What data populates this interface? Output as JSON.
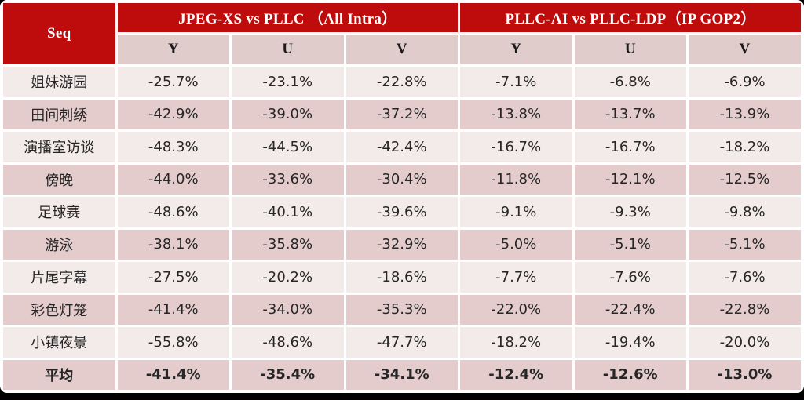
{
  "colors": {
    "header_red": "#BE0B0B",
    "header_text": "#FFFFFF",
    "subheader_bg": "#E1CCCC",
    "row_light_bg": "#F3EAEA",
    "row_dark_bg": "#E4CCCC",
    "body_text": "#262626",
    "grid_white": "#FFFFFF",
    "frame_black": "#000000"
  },
  "chart_data": {
    "type": "table",
    "seq_header": "Seq",
    "groups": [
      {
        "title": "JPEG-XS vs PLLC （All Intra）",
        "columns": [
          "Y",
          "U",
          "V"
        ]
      },
      {
        "title": "PLLC-AI vs PLLC-LDP（IP GOP2）",
        "columns": [
          "Y",
          "U",
          "V"
        ]
      }
    ],
    "rows": [
      {
        "seq": "姐妹游园",
        "values": [
          "-25.7%",
          "-23.1%",
          "-22.8%",
          "-7.1%",
          "-6.8%",
          "-6.9%"
        ],
        "bold": false
      },
      {
        "seq": "田间刺绣",
        "values": [
          "-42.9%",
          "-39.0%",
          "-37.2%",
          "-13.8%",
          "-13.7%",
          "-13.9%"
        ],
        "bold": false
      },
      {
        "seq": "演播室访谈",
        "values": [
          "-48.3%",
          "-44.5%",
          "-42.4%",
          "-16.7%",
          "-16.7%",
          "-18.2%"
        ],
        "bold": false
      },
      {
        "seq": "傍晚",
        "values": [
          "-44.0%",
          "-33.6%",
          "-30.4%",
          "-11.8%",
          "-12.1%",
          "-12.5%"
        ],
        "bold": false
      },
      {
        "seq": "足球赛",
        "values": [
          "-48.6%",
          "-40.1%",
          "-39.6%",
          "-9.1%",
          "-9.3%",
          "-9.8%"
        ],
        "bold": false
      },
      {
        "seq": "游泳",
        "values": [
          "-38.1%",
          "-35.8%",
          "-32.9%",
          "-5.0%",
          "-5.1%",
          "-5.1%"
        ],
        "bold": false
      },
      {
        "seq": "片尾字幕",
        "values": [
          "-27.5%",
          "-20.2%",
          "-18.6%",
          "-7.7%",
          "-7.6%",
          "-7.6%"
        ],
        "bold": false
      },
      {
        "seq": "彩色灯笼",
        "values": [
          "-41.4%",
          "-34.0%",
          "-35.3%",
          "-22.0%",
          "-22.4%",
          "-22.8%"
        ],
        "bold": false
      },
      {
        "seq": "小镇夜景",
        "values": [
          "-55.8%",
          "-48.6%",
          "-47.7%",
          "-18.2%",
          "-19.4%",
          "-20.0%"
        ],
        "bold": false
      },
      {
        "seq": "平均",
        "values": [
          "-41.4%",
          "-35.4%",
          "-34.1%",
          "-12.4%",
          "-12.6%",
          "-13.0%"
        ],
        "bold": true
      }
    ]
  }
}
